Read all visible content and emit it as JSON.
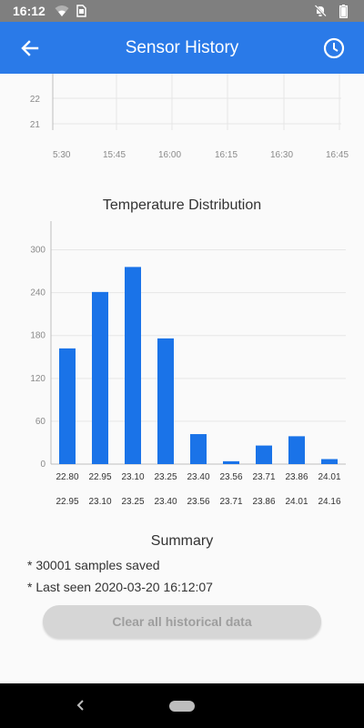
{
  "status_bar": {
    "time": "16:12",
    "icons_left": [
      "wifi-icon",
      "sim-card-icon"
    ],
    "icons_right": [
      "notifications-off-icon",
      "battery-icon"
    ]
  },
  "app_bar": {
    "title": "Sensor History",
    "back_icon": "arrow-back-icon",
    "history_icon": "clock-icon",
    "color": "#2a7ae8"
  },
  "history_chart": {
    "y_ticks": [
      "22",
      "21"
    ],
    "x_ticks": [
      "5:30",
      "15:45",
      "16:00",
      "16:15",
      "16:30",
      "16:45"
    ]
  },
  "chart_data": {
    "type": "bar",
    "title": "Temperature Distribution",
    "categories": [
      "22.80 – 22.95",
      "22.95 – 23.10",
      "23.10 – 23.25",
      "23.25 – 23.40",
      "23.40 – 23.56",
      "23.56 – 23.71",
      "23.71 – 23.86",
      "23.86 – 24.01",
      "24.01 – 24.16"
    ],
    "bin_starts": [
      "22.80",
      "22.95",
      "23.10",
      "23.25",
      "23.40",
      "23.56",
      "23.71",
      "23.86",
      "24.01"
    ],
    "bin_ends": [
      "22.95",
      "23.10",
      "23.25",
      "23.40",
      "23.56",
      "23.71",
      "23.86",
      "24.01",
      "24.16"
    ],
    "values": [
      162,
      241,
      276,
      176,
      42,
      4,
      26,
      39,
      7
    ],
    "ylim": [
      0,
      330
    ],
    "y_ticks": [
      0,
      60,
      120,
      180,
      240,
      300
    ],
    "grid": true,
    "bar_color": "#1a73e8"
  },
  "summary": {
    "title": "Summary",
    "samples": "* 30001 samples saved",
    "last_seen": "* Last seen 2020-03-20 16:12:07"
  },
  "clear_button": {
    "label": "Clear all historical data"
  }
}
